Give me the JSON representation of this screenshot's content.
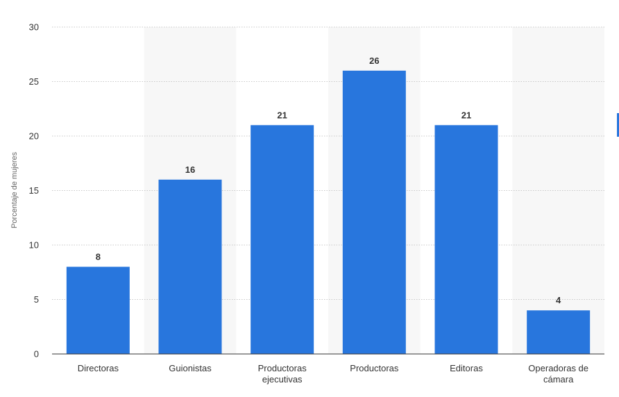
{
  "chart_data": {
    "type": "bar",
    "categories": [
      [
        "Directoras"
      ],
      [
        "Guionistas"
      ],
      [
        "Productoras",
        "ejecutivas"
      ],
      [
        "Productoras"
      ],
      [
        "Editoras"
      ],
      [
        "Operadoras de",
        "cámara"
      ]
    ],
    "values": [
      8,
      16,
      21,
      26,
      21,
      4
    ],
    "value_labels": [
      "8",
      "16",
      "21",
      "26",
      "21",
      "4"
    ],
    "title": "",
    "xlabel": "",
    "ylabel": "Porcentaje de mujeres",
    "ylim": [
      0,
      30
    ],
    "yticks": [
      0,
      5,
      10,
      15,
      20,
      25,
      30
    ],
    "ytick_labels": [
      "0",
      "5",
      "10",
      "15",
      "20",
      "25",
      "30"
    ],
    "grid": true,
    "grid_style": "dotted",
    "alternating_column_shading": true,
    "bar_color": "#2876dd",
    "band_color": "#f7f7f7",
    "grid_color": "#c8c8c8",
    "text_color": "#333333"
  }
}
